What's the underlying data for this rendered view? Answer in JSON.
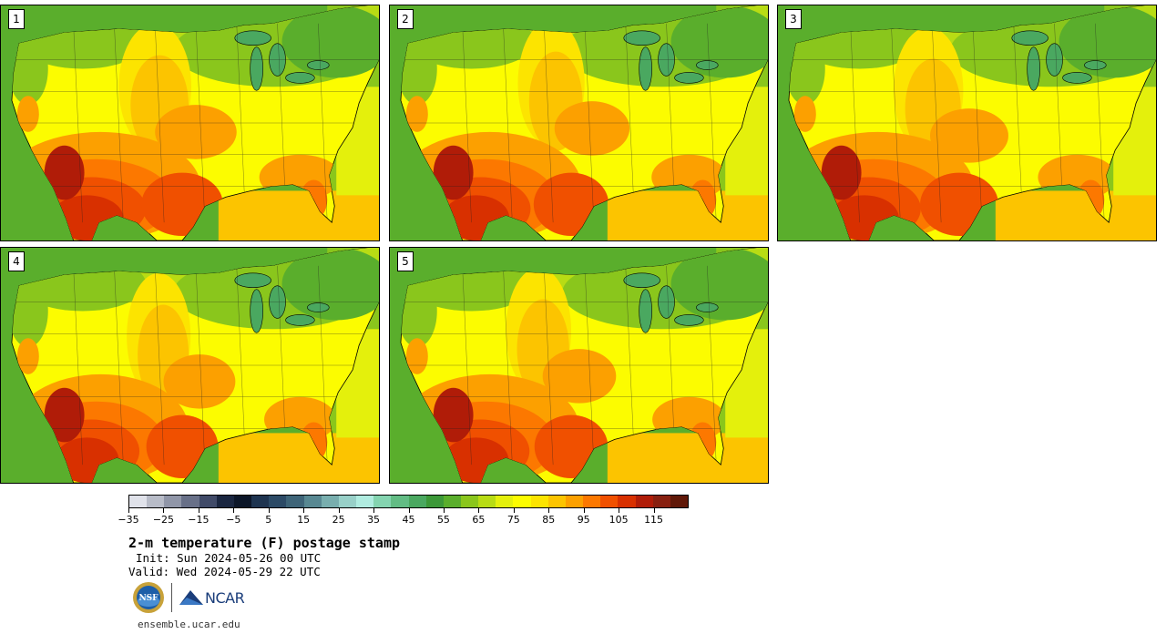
{
  "panels": [
    {
      "label": "1",
      "variant": 0
    },
    {
      "label": "2",
      "variant": 1
    },
    {
      "label": "3",
      "variant": 2
    },
    {
      "label": "4",
      "variant": 3
    },
    {
      "label": "5",
      "variant": 4
    }
  ],
  "colorbar": {
    "colors": [
      "#e0e2ea",
      "#b8bcc8",
      "#9096a8",
      "#687088",
      "#404a68",
      "#1a2640",
      "#0c1628",
      "#1e3450",
      "#2c4a66",
      "#3e6478",
      "#588892",
      "#78aeae",
      "#98d0c8",
      "#b0ece0",
      "#84d4b0",
      "#62bc84",
      "#4aa860",
      "#3c9838",
      "#5aae2c",
      "#8ac61c",
      "#b8dc14",
      "#e4f00c",
      "#fcfc00",
      "#fce400",
      "#fcc400",
      "#fca000",
      "#fc7800",
      "#f05000",
      "#d83000",
      "#b01c08",
      "#882010",
      "#601808"
    ],
    "tick_labels": [
      "−35",
      "−25",
      "−15",
      "−5",
      "5",
      "15",
      "25",
      "35",
      "45",
      "55",
      "65",
      "75",
      "85",
      "95",
      "105",
      "115"
    ]
  },
  "title": "2-m temperature (F) postage stamp",
  "init_line": "Init: Sun 2024-05-26 00 UTC",
  "valid_line": "Valid: Wed 2024-05-29 22 UTC",
  "logos": {
    "nsf_text": "NSF",
    "ncar_text": "NCAR"
  },
  "footer_url": "ensemble.ucar.edu"
}
